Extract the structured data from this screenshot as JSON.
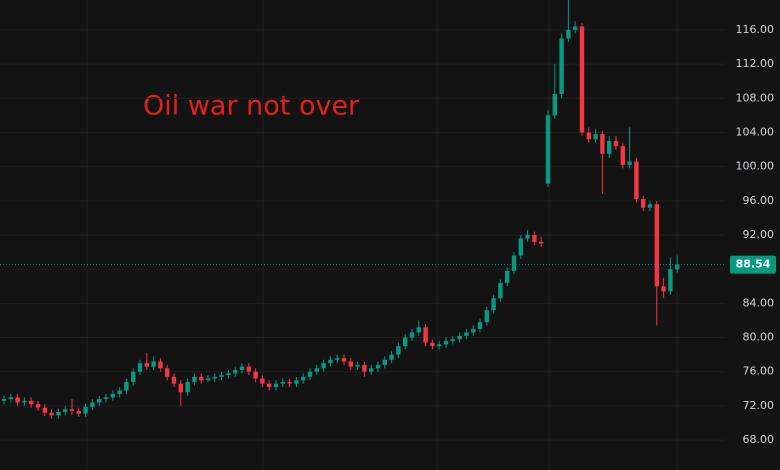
{
  "chart_data": {
    "type": "candlestick",
    "annotation": "Oil war not over",
    "up_color": "#089981",
    "down_color": "#f23645",
    "annotation_color": "#e3201b",
    "ylim": [
      64.5,
      119.5
    ],
    "yticks": [
      {
        "value": 68,
        "label": "68.00"
      },
      {
        "value": 72,
        "label": "72.00"
      },
      {
        "value": 76,
        "label": "76.00"
      },
      {
        "value": 80,
        "label": "80.00"
      },
      {
        "value": 84,
        "label": "84.00"
      },
      {
        "value": 88,
        "label": "88.00"
      },
      {
        "value": 92,
        "label": "92.00"
      },
      {
        "value": 96,
        "label": "96.00"
      },
      {
        "value": 100,
        "label": "100.00"
      },
      {
        "value": 104,
        "label": "104.00"
      },
      {
        "value": 108,
        "label": "108.00"
      },
      {
        "value": 112,
        "label": "112.00"
      },
      {
        "value": 116,
        "label": "116.00"
      }
    ],
    "grid": true,
    "open": [
      72.6,
      72.8,
      73.0,
      72.4,
      72.6,
      72.2,
      71.8,
      71.2,
      70.9,
      71.3,
      71.6,
      71.4,
      71.1,
      71.9,
      72.4,
      72.8,
      73.0,
      73.4,
      73.8,
      74.8,
      76.0,
      77.0,
      76.6,
      77.2,
      76.4,
      75.4,
      74.6,
      73.6,
      74.8,
      75.4,
      75.0,
      75.2,
      75.4,
      75.6,
      75.8,
      76.2,
      76.6,
      76.0,
      75.2,
      74.6,
      74.2,
      74.6,
      74.8,
      74.6,
      75.0,
      75.4,
      76.0,
      76.4,
      77.0,
      77.4,
      77.6,
      77.2,
      76.6,
      76.8,
      76.0,
      76.4,
      76.8,
      77.4,
      78.0,
      79.0,
      80.0,
      80.6,
      81.2,
      79.4,
      79.0,
      79.2,
      79.6,
      79.8,
      80.2,
      80.6,
      81.0,
      81.8,
      83.2,
      84.6,
      86.4,
      87.8,
      89.6,
      91.6,
      92.0,
      91.2,
      98.0,
      106.0,
      108.5,
      115.0,
      116.0,
      116.4,
      104.0,
      103.2,
      103.8,
      101.5,
      103.0,
      102.4,
      100.2,
      100.6,
      96.2,
      95.2,
      95.6,
      86.0,
      85.4,
      88.0
    ],
    "high": [
      73.2,
      73.4,
      73.4,
      73.0,
      73.0,
      72.6,
      72.2,
      71.6,
      71.7,
      72.0,
      72.8,
      71.8,
      72.3,
      72.8,
      73.2,
      73.4,
      73.8,
      74.2,
      75.2,
      76.4,
      77.4,
      78.2,
      77.8,
      77.6,
      76.8,
      75.8,
      75.0,
      75.2,
      75.8,
      75.8,
      75.6,
      75.8,
      76.0,
      76.2,
      76.6,
      77.0,
      77.0,
      76.4,
      75.6,
      75.0,
      75.0,
      75.2,
      75.2,
      75.4,
      75.8,
      76.4,
      76.8,
      77.4,
      77.8,
      78.0,
      78.0,
      77.6,
      77.2,
      77.2,
      76.8,
      77.2,
      77.8,
      78.4,
      79.4,
      80.4,
      81.0,
      82.0,
      81.6,
      79.8,
      79.6,
      80.0,
      80.2,
      80.6,
      81.0,
      81.4,
      82.2,
      83.6,
      85.0,
      86.8,
      88.2,
      90.0,
      92.0,
      92.6,
      92.4,
      91.8,
      106.6,
      112.0,
      115.6,
      119.5,
      117.0,
      116.8,
      104.6,
      104.4,
      104.2,
      103.6,
      103.6,
      102.8,
      104.6,
      101.0,
      96.6,
      96.0,
      96.0,
      87.0,
      89.4,
      89.6
    ],
    "low": [
      72.2,
      72.4,
      72.0,
      72.0,
      71.8,
      71.4,
      70.8,
      70.5,
      70.5,
      70.9,
      71.0,
      70.7,
      70.7,
      71.5,
      72.0,
      72.4,
      72.6,
      73.0,
      73.4,
      74.4,
      75.6,
      76.2,
      76.2,
      76.0,
      75.0,
      74.2,
      72.0,
      73.2,
      74.4,
      74.6,
      74.8,
      74.8,
      75.0,
      75.2,
      75.4,
      75.8,
      75.6,
      74.8,
      74.2,
      73.8,
      73.8,
      74.2,
      74.2,
      74.2,
      74.6,
      75.0,
      75.6,
      76.0,
      76.6,
      77.0,
      76.8,
      76.2,
      76.2,
      75.4,
      75.6,
      76.0,
      76.4,
      77.0,
      77.6,
      78.6,
      79.6,
      80.2,
      79.0,
      78.6,
      78.6,
      78.8,
      79.2,
      79.4,
      79.8,
      80.2,
      80.6,
      81.4,
      82.8,
      84.2,
      86.0,
      87.4,
      89.2,
      91.2,
      90.8,
      90.6,
      97.6,
      105.6,
      108.0,
      114.6,
      115.6,
      103.6,
      102.8,
      102.8,
      96.8,
      101.0,
      102.0,
      99.8,
      99.8,
      95.8,
      94.8,
      94.8,
      81.4,
      84.6,
      85.0,
      87.6
    ],
    "close": [
      72.8,
      73.0,
      72.4,
      72.6,
      72.2,
      71.8,
      71.2,
      70.9,
      71.3,
      71.6,
      71.4,
      71.1,
      71.9,
      72.4,
      72.8,
      73.0,
      73.4,
      73.8,
      74.8,
      76.0,
      77.0,
      76.6,
      77.2,
      76.4,
      75.4,
      74.6,
      73.6,
      74.8,
      75.4,
      75.0,
      75.2,
      75.4,
      75.6,
      75.8,
      76.2,
      76.6,
      76.0,
      75.2,
      74.6,
      74.2,
      74.6,
      74.8,
      74.6,
      75.0,
      75.4,
      76.0,
      76.4,
      77.0,
      77.4,
      77.6,
      77.2,
      76.6,
      76.8,
      76.0,
      76.4,
      76.8,
      77.4,
      78.0,
      79.0,
      80.0,
      80.6,
      81.2,
      79.4,
      79.0,
      79.2,
      79.6,
      79.8,
      80.2,
      80.6,
      81.0,
      81.8,
      83.2,
      84.6,
      86.4,
      87.8,
      89.6,
      91.6,
      92.0,
      91.2,
      91.0,
      106.0,
      108.5,
      115.0,
      116.0,
      116.4,
      104.0,
      103.2,
      103.8,
      101.5,
      103.0,
      102.4,
      100.2,
      100.6,
      96.2,
      95.2,
      95.6,
      86.0,
      85.4,
      88.0,
      88.54
    ]
  }
}
